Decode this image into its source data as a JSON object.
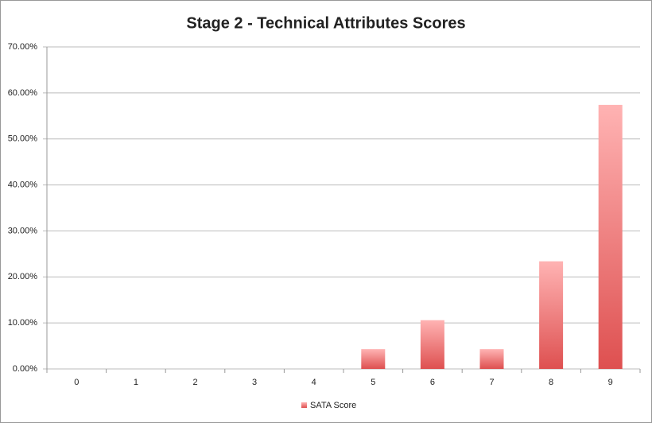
{
  "chart_data": {
    "type": "bar",
    "title": "Stage 2 - Technical Attributes Scores",
    "categories": [
      "0",
      "1",
      "2",
      "3",
      "4",
      "5",
      "6",
      "7",
      "8",
      "9"
    ],
    "series": [
      {
        "name": "SATA Score",
        "color": "#e05555",
        "values": [
          0,
          0,
          0,
          0,
          0,
          4.3,
          10.6,
          4.3,
          23.4,
          57.4
        ]
      }
    ],
    "ylim": [
      0,
      70
    ],
    "yticks": [
      {
        "value": 0,
        "label": "0.00%"
      },
      {
        "value": 10,
        "label": "10.00%"
      },
      {
        "value": 20,
        "label": "20.00%"
      },
      {
        "value": 30,
        "label": "30.00%"
      },
      {
        "value": 40,
        "label": "40.00%"
      },
      {
        "value": 50,
        "label": "50.00%"
      },
      {
        "value": 60,
        "label": "60.00%"
      },
      {
        "value": 70,
        "label": "70.00%"
      }
    ],
    "grid": true,
    "legend": "bottom"
  }
}
